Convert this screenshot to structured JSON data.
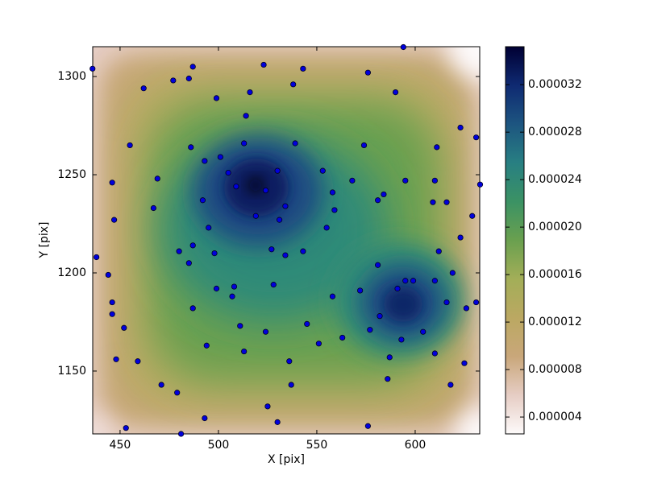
{
  "chart_data": {
    "type": "scatter",
    "xlabel": "X [pix]",
    "ylabel": "Y [pix]",
    "xlim": [
      436.1,
      632.8
    ],
    "xticks": [
      450,
      500,
      550,
      600
    ],
    "ylim": [
      1118.0,
      1315.2
    ],
    "yticks": [
      1150,
      1200,
      1250,
      1300
    ],
    "color": "#0000dd",
    "x": [
      436,
      487,
      523,
      543,
      576,
      594,
      462,
      477,
      485,
      538,
      516,
      499,
      590,
      514,
      455,
      486,
      513,
      539,
      574,
      623,
      631,
      611,
      501,
      493,
      505,
      469,
      446,
      509,
      530,
      553,
      568,
      558,
      595,
      584,
      610,
      633,
      524,
      492,
      534,
      581,
      609,
      616,
      467,
      447,
      559,
      519,
      629,
      495,
      531,
      555,
      623,
      438,
      480,
      487,
      527,
      534,
      543,
      612,
      485,
      498,
      444,
      581,
      619,
      528,
      508,
      499,
      507,
      572,
      558,
      591,
      595,
      599,
      610,
      446,
      487,
      446,
      616,
      626,
      631,
      511,
      545,
      577,
      582,
      452,
      524,
      604,
      563,
      551,
      494,
      513,
      593,
      610,
      448,
      459,
      536,
      587,
      625,
      586,
      537,
      618,
      471,
      479,
      525,
      493,
      530,
      576,
      453,
      481
    ],
    "y": [
      1304,
      1305,
      1306,
      1304,
      1302,
      1315,
      1294,
      1298,
      1299,
      1296,
      1292,
      1289,
      1292,
      1280,
      1265,
      1264,
      1266,
      1266,
      1265,
      1274,
      1269,
      1264,
      1259,
      1257,
      1251,
      1248,
      1246,
      1244,
      1252,
      1252,
      1247,
      1241,
      1247,
      1240,
      1247,
      1245,
      1242,
      1237,
      1234,
      1237,
      1236,
      1236,
      1233,
      1227,
      1232,
      1229,
      1229,
      1223,
      1227,
      1223,
      1218,
      1208,
      1211,
      1214,
      1212,
      1209,
      1211,
      1211,
      1205,
      1210,
      1199,
      1204,
      1200,
      1194,
      1193,
      1192,
      1188,
      1191,
      1188,
      1192,
      1196,
      1196,
      1196,
      1185,
      1182,
      1179,
      1185,
      1182,
      1185,
      1173,
      1174,
      1171,
      1178,
      1172,
      1170,
      1170,
      1167,
      1164,
      1163,
      1160,
      1166,
      1159,
      1156,
      1155,
      1155,
      1157,
      1154,
      1146,
      1143,
      1143,
      1143,
      1139,
      1132,
      1126,
      1124,
      1122,
      1121,
      1118
    ],
    "colorbar": {
      "clim": [
        2.58e-06,
        3.52e-05
      ],
      "ticks": [
        {
          "value": 4e-06,
          "label": "0.000004"
        },
        {
          "value": 8e-06,
          "label": "0.000008"
        },
        {
          "value": 1.2e-05,
          "label": "0.000012"
        },
        {
          "value": 1.6e-05,
          "label": "0.000016"
        },
        {
          "value": 2e-05,
          "label": "0.000020"
        },
        {
          "value": 2.4e-05,
          "label": "0.000024"
        },
        {
          "value": 2.8e-05,
          "label": "0.000028"
        },
        {
          "value": 3.2e-05,
          "label": "0.000032"
        }
      ]
    }
  }
}
